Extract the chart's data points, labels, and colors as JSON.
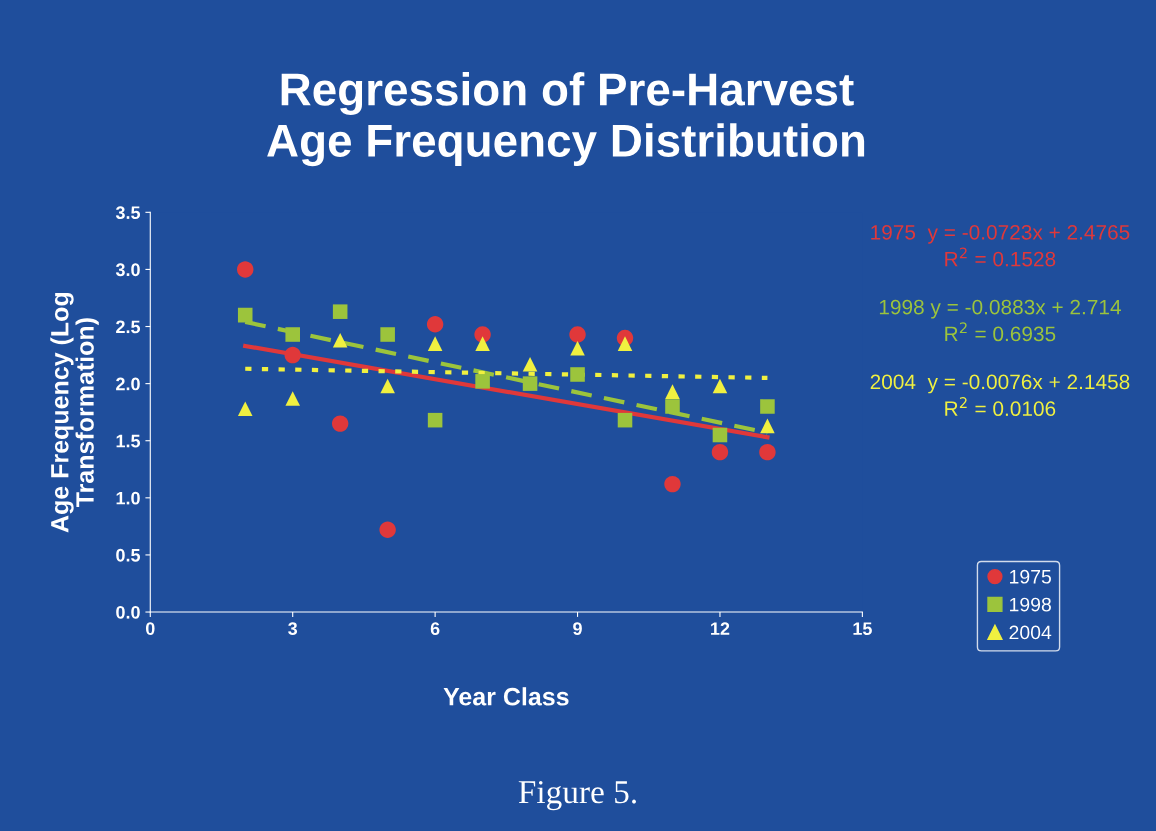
{
  "chart_data": {
    "type": "scatter",
    "title": "Regression of Pre-Harvest\nAge Frequency Distribution",
    "xlabel": "Year Class",
    "ylabel": "Age Frequency (Log\nTransformation)",
    "xlim": [
      0,
      15
    ],
    "xticks": [
      0,
      3,
      6,
      9,
      12,
      15
    ],
    "ylim": [
      0,
      3.5
    ],
    "yticks": [
      {
        "value": 0,
        "label": "0.0"
      },
      {
        "value": 0.5,
        "label": "0.5"
      },
      {
        "value": 1,
        "label": "1.0"
      },
      {
        "value": 1.5,
        "label": "1.5"
      },
      {
        "value": 2,
        "label": "2.0"
      },
      {
        "value": 2.5,
        "label": "2.5"
      },
      {
        "value": 3,
        "label": "3.0"
      },
      {
        "value": 3.5,
        "label": "3.5"
      }
    ],
    "grid": false,
    "legend": "bottom right",
    "series": [
      {
        "name": "1975",
        "color": "#e0383a",
        "marker": "circle",
        "x": [
          2,
          3,
          4,
          5,
          6,
          7,
          9,
          10,
          11,
          12,
          13
        ],
        "values": [
          3.0,
          2.25,
          1.65,
          0.72,
          2.52,
          2.43,
          2.43,
          2.4,
          1.12,
          1.4,
          1.4
        ]
      },
      {
        "name": "1998",
        "color": "#9cc43c",
        "marker": "square",
        "x": [
          2,
          3,
          4,
          5,
          6,
          7,
          8,
          9,
          10,
          11,
          12,
          13
        ],
        "values": [
          2.6,
          2.43,
          2.63,
          2.43,
          1.68,
          2.02,
          2.0,
          2.08,
          1.68,
          1.8,
          1.55,
          1.8
        ]
      },
      {
        "name": "2004",
        "color": "#f0f040",
        "marker": "triangle",
        "x": [
          2,
          3,
          4,
          5,
          6,
          7,
          8,
          9,
          10,
          11,
          12,
          13
        ],
        "values": [
          1.78,
          1.87,
          2.38,
          1.98,
          2.35,
          2.35,
          2.17,
          2.31,
          2.35,
          1.93,
          1.98,
          1.63
        ]
      },
      {
        "type": "line",
        "color": "#e0383a",
        "line_style": "solid",
        "x": [
          2,
          13
        ],
        "values": [
          2.33,
          1.53
        ]
      },
      {
        "type": "line",
        "color": "#9cc43c",
        "line_style": "dashed",
        "x": [
          2,
          13
        ],
        "values": [
          2.54,
          1.57
        ]
      },
      {
        "type": "line",
        "color": "#f0f040",
        "line_style": "dotted",
        "x": [
          2,
          13
        ],
        "values": [
          2.13,
          2.05
        ]
      }
    ],
    "annotations": [
      "1975  y = -0.0723x + 2.4765\nR$^{2}$ = 0.1528",
      "1998 y = -0.0883x + 2.714\nR$^{2}$ = 0.6935",
      "2004  y = -0.0076x + 2.1458\nR$^{2}$ = 0.0106",
      "Figure 5."
    ]
  }
}
